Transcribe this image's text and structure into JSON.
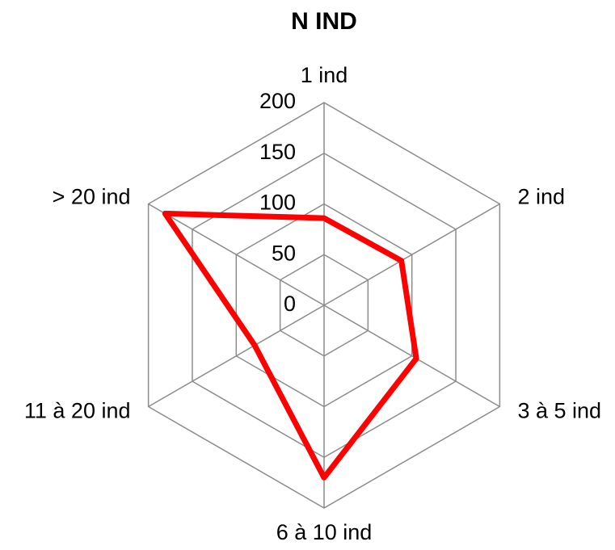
{
  "chart_data": {
    "type": "radar",
    "title": "N IND",
    "categories": [
      "1 ind",
      "2 ind",
      "3 à 5 ind",
      "6 à 10 ind",
      "11 à 20 ind",
      "> 20 ind"
    ],
    "series": [
      {
        "name": "N IND",
        "color": "#ff0000",
        "values": [
          86,
          88,
          105,
          170,
          79,
          181
        ]
      }
    ],
    "ylim": [
      0,
      200
    ],
    "yticks": [
      0,
      50,
      100,
      150,
      200
    ],
    "grid": true
  }
}
